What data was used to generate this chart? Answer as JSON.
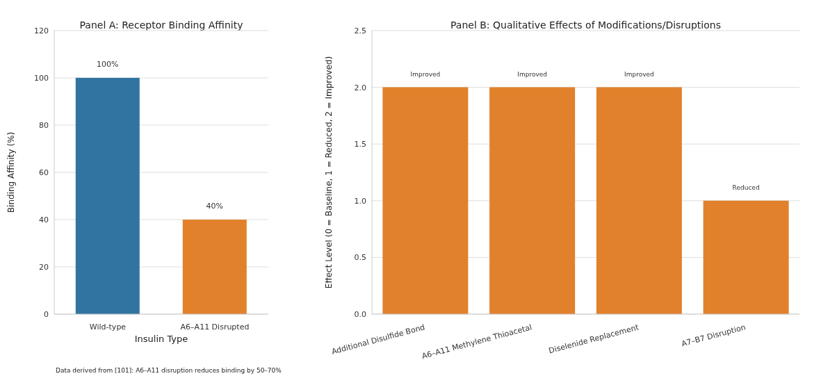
{
  "chart_data": [
    {
      "type": "bar",
      "title": "Panel A: Receptor Binding Affinity",
      "xlabel": "Insulin Type",
      "ylabel": "Binding Affinity (%)",
      "categories": [
        "Wild-type",
        "A6–A11 Disrupted"
      ],
      "values": [
        100,
        40
      ],
      "colors": [
        "#3274a1",
        "#e1812c"
      ],
      "value_labels": [
        "100%",
        "40%"
      ],
      "ylim": [
        0,
        120
      ],
      "yticks": [
        0,
        20,
        40,
        60,
        80,
        100,
        120
      ],
      "grid": "y",
      "annotations": [
        "Data derived from [101]: A6–A11 disruption reduces binding by 50–70%"
      ]
    },
    {
      "type": "bar",
      "title": "Panel B: Qualitative Effects of Modifications/Disruptions",
      "ylabel": "Effect Level (0 = Baseline, 1 = Reduced, 2 = Improved)",
      "categories": [
        "Additional Disulfide Bond",
        "A6–A11 Methylene Thioacetal",
        "Diselenide Replacement",
        "A7–B7 Disruption"
      ],
      "values": [
        2,
        2,
        2,
        1
      ],
      "color": "#e1812c",
      "value_labels": [
        "Improved",
        "Improved",
        "Improved",
        "Reduced"
      ],
      "ylim": [
        0,
        2.5
      ],
      "yticks": [
        {
          "value": 0,
          "label": "0.0"
        },
        {
          "value": 0.5,
          "label": "0.5"
        },
        {
          "value": 1,
          "label": "1.0"
        },
        {
          "value": 1.5,
          "label": "1.5"
        },
        {
          "value": 2,
          "label": "2.0"
        },
        {
          "value": 2.5,
          "label": "2.5"
        }
      ],
      "grid": "y"
    }
  ]
}
